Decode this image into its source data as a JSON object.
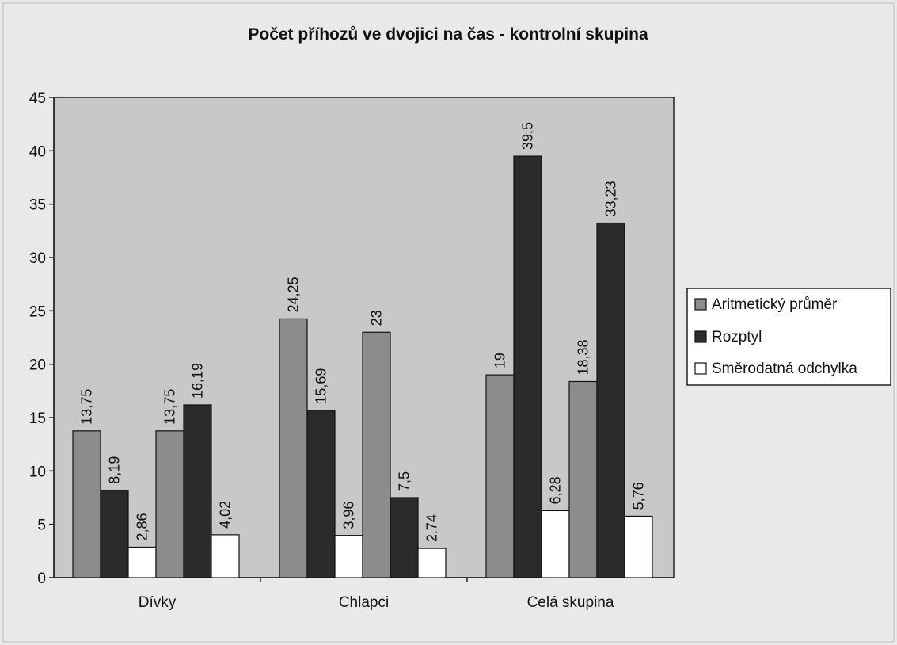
{
  "chart_data": {
    "type": "bar",
    "title": "Počet příhozů ve dvojici na čas - kontrolní skupina",
    "xlabel": "",
    "ylabel": "",
    "ylim": [
      0,
      45
    ],
    "yticks": [
      0,
      5,
      10,
      15,
      20,
      25,
      30,
      35,
      40,
      45
    ],
    "grid": false,
    "legend_position": "right",
    "categories": [
      "Dívky",
      "Chlapci",
      "Celá skupina"
    ],
    "groups": [
      {
        "category": "Dívky",
        "bars": [
          {
            "series": "Aritmetický průměr",
            "value": 13.75,
            "label": "13,75"
          },
          {
            "series": "Rozptyl",
            "value": 8.19,
            "label": "8,19"
          },
          {
            "series": "Směrodatná odchylka",
            "value": 2.86,
            "label": "2,86"
          },
          {
            "series": "Aritmetický průměr",
            "value": 13.75,
            "label": "13,75"
          },
          {
            "series": "Rozptyl",
            "value": 16.19,
            "label": "16,19"
          },
          {
            "series": "Směrodatná odchylka",
            "value": 4.02,
            "label": "4,02"
          }
        ]
      },
      {
        "category": "Chlapci",
        "bars": [
          {
            "series": "Aritmetický průměr",
            "value": 24.25,
            "label": "24,25"
          },
          {
            "series": "Rozptyl",
            "value": 15.69,
            "label": "15,69"
          },
          {
            "series": "Směrodatná odchylka",
            "value": 3.96,
            "label": "3,96"
          },
          {
            "series": "Aritmetický průměr",
            "value": 23,
            "label": "23"
          },
          {
            "series": "Rozptyl",
            "value": 7.5,
            "label": "7,5"
          },
          {
            "series": "Směrodatná odchylka",
            "value": 2.74,
            "label": "2,74"
          }
        ]
      },
      {
        "category": "Celá skupina",
        "bars": [
          {
            "series": "Aritmetický průměr",
            "value": 19,
            "label": "19"
          },
          {
            "series": "Rozptyl",
            "value": 39.5,
            "label": "39,5"
          },
          {
            "series": "Směrodatná odchylka",
            "value": 6.28,
            "label": "6,28"
          },
          {
            "series": "Aritmetický průměr",
            "value": 18.38,
            "label": "18,38"
          },
          {
            "series": "Rozptyl",
            "value": 33.23,
            "label": "33,23"
          },
          {
            "series": "Směrodatná odchylka",
            "value": 5.76,
            "label": "5,76"
          }
        ]
      }
    ],
    "legend": [
      {
        "name": "Aritmetický průměr",
        "color": "#8c8c8c"
      },
      {
        "name": "Rozptyl",
        "color": "#2b2b2b"
      },
      {
        "name": "Směrodatná odchylka",
        "color": "#ffffff"
      }
    ],
    "colors": {
      "plot_background": "#c8c8c6",
      "page_background": "#e9e9e7"
    }
  }
}
